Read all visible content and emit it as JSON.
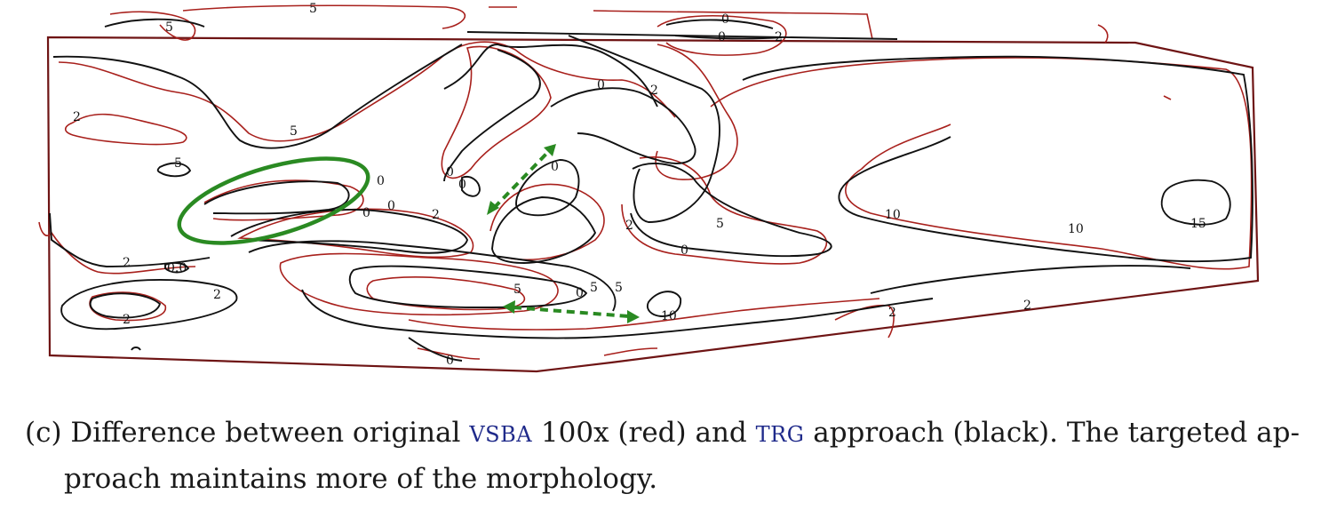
{
  "colors": {
    "vsba_red": "#a8201c",
    "trg_black": "#111111",
    "highlight_green": "#2a8a22",
    "domain_border": "#6e1414",
    "acronym_blue": "#1f2a8a"
  },
  "figure": {
    "contour_labels": {
      "l1": "5",
      "l2": "5",
      "l3": "2",
      "l4": "0",
      "l5": "2",
      "l6": "2",
      "l7": "5",
      "l8": "5",
      "l9": "2",
      "l10": "0",
      "l11": "0",
      "l12": "0",
      "l13": "2",
      "l14": "0",
      "l15": "0",
      "l16": "0",
      "l17": "2",
      "l18": "5",
      "l19": "0",
      "l20": "10",
      "l21": "10",
      "l22": "15",
      "l23": "0",
      "l24": "2",
      "l25": "2",
      "l26": "0.0",
      "l27": "5",
      "l28": "5",
      "l29": "5",
      "l30": "10",
      "l31": "0",
      "l32": "0",
      "l33": "2",
      "l34": "2",
      "l35": "0"
    }
  },
  "caption": {
    "prefix": "(c) Difference between original ",
    "acronym_vsba": "VSBA",
    "mid_1": " 100x (red) and ",
    "acronym_trg": "TRG",
    "mid_2": " approach (black).  The targeted ap-",
    "line2": "proach maintains more of the morphology."
  }
}
